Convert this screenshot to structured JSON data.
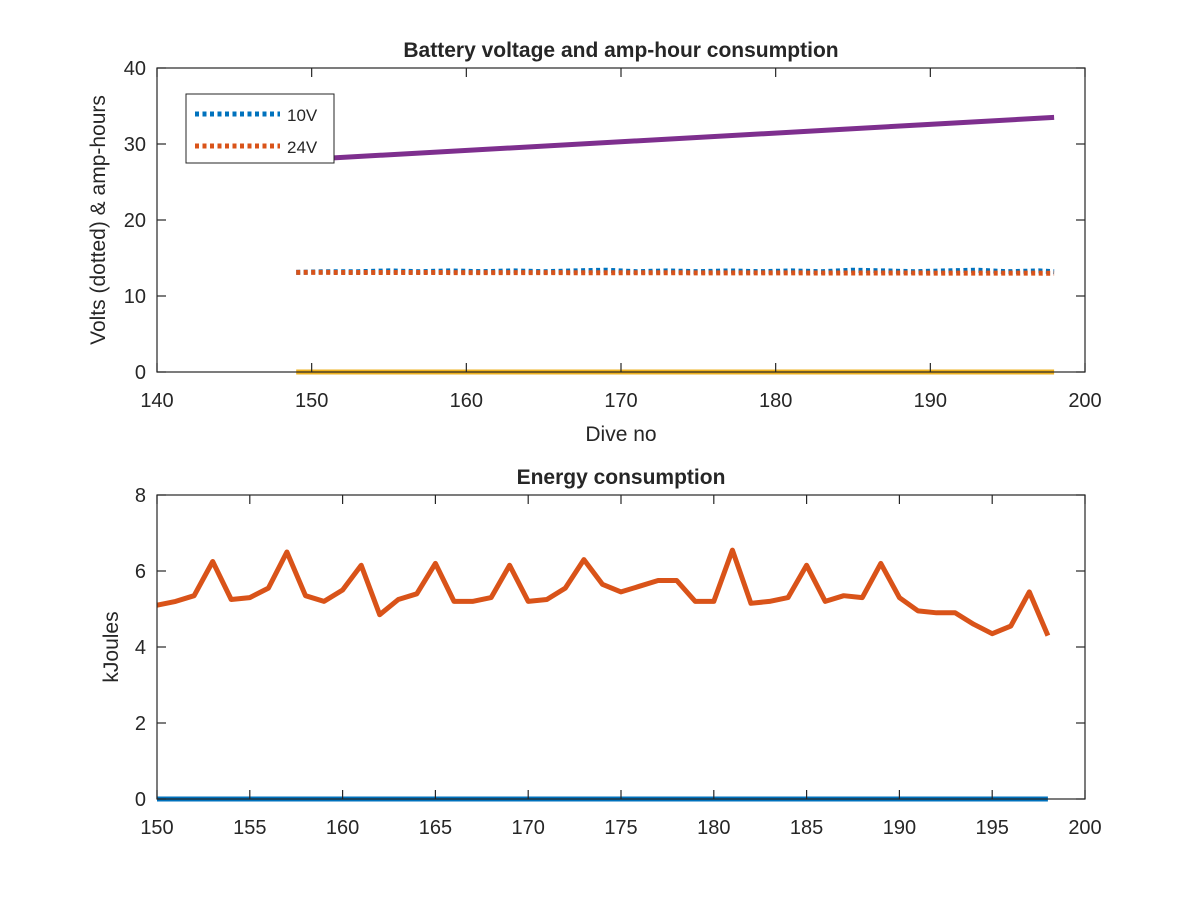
{
  "chart_data": [
    {
      "type": "line",
      "title": "Battery voltage and amp-hour consumption",
      "xlabel": "Dive no",
      "ylabel": "Volts (dotted) & amp-hours",
      "xlim": [
        140,
        200
      ],
      "ylim": [
        0,
        40
      ],
      "xticks": [
        140,
        150,
        160,
        170,
        180,
        190,
        200
      ],
      "yticks": [
        0,
        10,
        20,
        30,
        40
      ],
      "grid": false,
      "legend": {
        "position": "top-left",
        "entries": [
          "10V",
          "24V"
        ]
      },
      "series": [
        {
          "name": "10V",
          "style": "dotted",
          "color": "#0072BD",
          "x": [
            149,
            151,
            153,
            155,
            157,
            159,
            161,
            163,
            165,
            167,
            169,
            171,
            173,
            175,
            177,
            179,
            181,
            183,
            185,
            187,
            189,
            191,
            193,
            195,
            197,
            198
          ],
          "y": [
            13.1,
            13.2,
            13.2,
            13.3,
            13.2,
            13.3,
            13.2,
            13.3,
            13.2,
            13.3,
            13.4,
            13.2,
            13.3,
            13.2,
            13.3,
            13.2,
            13.3,
            13.2,
            13.4,
            13.3,
            13.2,
            13.3,
            13.4,
            13.2,
            13.3,
            13.2
          ]
        },
        {
          "name": "24V",
          "style": "dotted",
          "color": "#D95319",
          "x": [
            149,
            198
          ],
          "y": [
            13.1,
            13.0
          ]
        },
        {
          "style": "solid",
          "color": "#EDB120",
          "x": [
            149,
            198
          ],
          "y": [
            0,
            0
          ]
        },
        {
          "style": "solid",
          "color": "#7E2F8E",
          "x": [
            149,
            198
          ],
          "y": [
            27.9,
            33.5
          ]
        }
      ]
    },
    {
      "type": "line",
      "title": "Energy consumption",
      "xlabel": "",
      "ylabel": "kJoules",
      "xlim": [
        150,
        200
      ],
      "ylim": [
        0,
        8
      ],
      "xticks": [
        150,
        155,
        160,
        165,
        170,
        175,
        180,
        185,
        190,
        195,
        200
      ],
      "yticks": [
        0,
        2,
        4,
        6,
        8
      ],
      "grid": false,
      "series": [
        {
          "style": "solid",
          "color": "#0072BD",
          "x": [
            150,
            198
          ],
          "y": [
            0,
            0
          ]
        },
        {
          "style": "solid",
          "color": "#D95319",
          "x": [
            150,
            151,
            152,
            153,
            154,
            155,
            156,
            157,
            158,
            159,
            160,
            161,
            162,
            163,
            164,
            165,
            166,
            167,
            168,
            169,
            170,
            171,
            172,
            173,
            174,
            175,
            176,
            177,
            178,
            179,
            180,
            181,
            182,
            183,
            184,
            185,
            186,
            187,
            188,
            189,
            190,
            191,
            192,
            193,
            194,
            195,
            196,
            197,
            198
          ],
          "y": [
            5.1,
            5.2,
            5.35,
            6.25,
            5.25,
            5.3,
            5.55,
            6.5,
            5.35,
            5.2,
            5.5,
            6.15,
            4.85,
            5.25,
            5.4,
            6.2,
            5.2,
            5.2,
            5.3,
            6.15,
            5.2,
            5.25,
            5.55,
            6.3,
            5.65,
            5.45,
            5.6,
            5.75,
            5.75,
            5.2,
            5.2,
            6.55,
            5.15,
            5.2,
            5.3,
            6.15,
            5.2,
            5.35,
            5.3,
            6.2,
            5.3,
            4.95,
            4.9,
            4.9,
            4.6,
            4.35,
            4.55,
            5.45,
            4.3
          ]
        }
      ]
    }
  ]
}
